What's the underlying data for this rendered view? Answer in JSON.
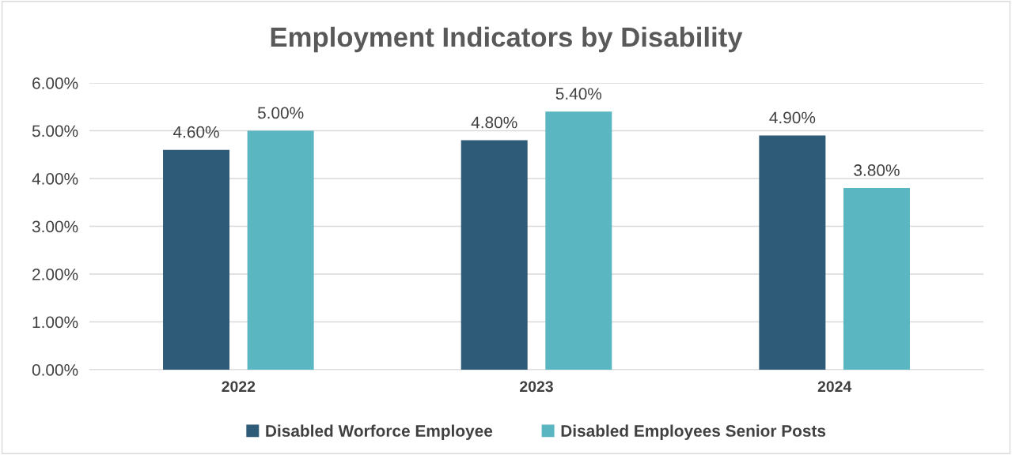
{
  "chart_data": {
    "type": "bar",
    "title": "Employment Indicators by Disability",
    "categories": [
      "2022",
      "2023",
      "2024"
    ],
    "series": [
      {
        "name": "Disabled Worforce Employee",
        "color": "#2e5b78",
        "values": [
          4.6,
          4.8,
          4.9
        ],
        "value_labels": [
          "4.60%",
          "4.80%",
          "4.90%"
        ]
      },
      {
        "name": "Disabled Employees Senior Posts",
        "color": "#5ab6c0",
        "values": [
          5.0,
          5.4,
          3.8
        ],
        "value_labels": [
          "5.00%",
          "5.40%",
          "3.80%"
        ]
      }
    ],
    "ylim": [
      0,
      6
    ],
    "yticks": [
      {
        "value": 0,
        "label": "0.00%"
      },
      {
        "value": 1,
        "label": "1.00%"
      },
      {
        "value": 2,
        "label": "2.00%"
      },
      {
        "value": 3,
        "label": "3.00%"
      },
      {
        "value": 4,
        "label": "4.00%"
      },
      {
        "value": 5,
        "label": "5.00%"
      },
      {
        "value": 6,
        "label": "6.00%"
      }
    ],
    "grid": "y",
    "legend": "bottom"
  }
}
